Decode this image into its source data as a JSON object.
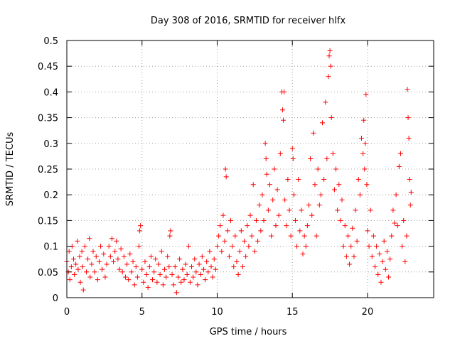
{
  "chart_data": {
    "type": "scatter",
    "title": "Day 308 of 2016, SRMTID for receiver hlfx",
    "xlabel": "GPS time / hours",
    "ylabel": "SRMTID / TECUs",
    "xlim": [
      0,
      24.4
    ],
    "ylim": [
      0,
      0.5
    ],
    "xticks": [
      0,
      5,
      10,
      15,
      20
    ],
    "xtick_labels": [
      "0",
      "5",
      "10",
      "15",
      "20"
    ],
    "yticks": [
      0,
      0.05,
      0.1,
      0.15,
      0.2,
      0.25,
      0.3,
      0.35,
      0.4,
      0.45,
      0.5
    ],
    "ytick_labels": [
      "0",
      "0.05",
      "0.1",
      "0.15",
      "0.2",
      "0.25",
      "0.3",
      "0.35",
      "0.4",
      "0.45",
      "0.5"
    ],
    "grid": true,
    "marker": "+",
    "series": [
      {
        "name": "SRMTID",
        "color": "#ff0000",
        "points": [
          [
            0.0,
            0.07
          ],
          [
            0.1,
            0.05
          ],
          [
            0.15,
            0.09
          ],
          [
            0.2,
            0.035
          ],
          [
            0.3,
            0.06
          ],
          [
            0.35,
            0.1
          ],
          [
            0.45,
            0.075
          ],
          [
            0.5,
            0.045
          ],
          [
            0.6,
            0.065
          ],
          [
            0.7,
            0.11
          ],
          [
            0.75,
            0.055
          ],
          [
            0.85,
            0.08
          ],
          [
            0.9,
            0.03
          ],
          [
            1.0,
            0.09
          ],
          [
            1.05,
            0.06
          ],
          [
            1.1,
            0.015
          ],
          [
            1.2,
            0.1
          ],
          [
            1.3,
            0.05
          ],
          [
            1.4,
            0.075
          ],
          [
            1.5,
            0.115
          ],
          [
            1.55,
            0.04
          ],
          [
            1.65,
            0.065
          ],
          [
            1.75,
            0.09
          ],
          [
            1.85,
            0.05
          ],
          [
            1.95,
            0.08
          ],
          [
            2.05,
            0.035
          ],
          [
            2.15,
            0.07
          ],
          [
            2.25,
            0.1
          ],
          [
            2.35,
            0.055
          ],
          [
            2.45,
            0.085
          ],
          [
            2.55,
            0.04
          ],
          [
            2.65,
            0.065
          ],
          [
            2.8,
            0.1
          ],
          [
            2.9,
            0.08
          ],
          [
            3.0,
            0.115
          ],
          [
            3.1,
            0.07
          ],
          [
            3.2,
            0.09
          ],
          [
            3.3,
            0.11
          ],
          [
            3.4,
            0.075
          ],
          [
            3.5,
            0.055
          ],
          [
            3.6,
            0.095
          ],
          [
            3.7,
            0.05
          ],
          [
            3.8,
            0.08
          ],
          [
            3.9,
            0.04
          ],
          [
            4.0,
            0.065
          ],
          [
            4.1,
            0.035
          ],
          [
            4.2,
            0.085
          ],
          [
            4.3,
            0.05
          ],
          [
            4.4,
            0.07
          ],
          [
            4.5,
            0.025
          ],
          [
            4.6,
            0.06
          ],
          [
            4.7,
            0.04
          ],
          [
            4.8,
            0.1
          ],
          [
            4.85,
            0.13
          ],
          [
            4.9,
            0.14
          ],
          [
            5.0,
            0.055
          ],
          [
            5.1,
            0.03
          ],
          [
            5.2,
            0.07
          ],
          [
            5.3,
            0.045
          ],
          [
            5.4,
            0.02
          ],
          [
            5.5,
            0.06
          ],
          [
            5.6,
            0.08
          ],
          [
            5.7,
            0.035
          ],
          [
            5.8,
            0.05
          ],
          [
            5.9,
            0.075
          ],
          [
            6.0,
            0.03
          ],
          [
            6.1,
            0.065
          ],
          [
            6.2,
            0.045
          ],
          [
            6.3,
            0.09
          ],
          [
            6.4,
            0.025
          ],
          [
            6.5,
            0.055
          ],
          [
            6.6,
            0.04
          ],
          [
            6.7,
            0.08
          ],
          [
            6.8,
            0.06
          ],
          [
            6.85,
            0.12
          ],
          [
            6.9,
            0.13
          ],
          [
            7.0,
            0.045
          ],
          [
            7.1,
            0.025
          ],
          [
            7.2,
            0.06
          ],
          [
            7.3,
            0.01
          ],
          [
            7.4,
            0.04
          ],
          [
            7.5,
            0.075
          ],
          [
            7.6,
            0.03
          ],
          [
            7.7,
            0.055
          ],
          [
            7.8,
            0.035
          ],
          [
            7.9,
            0.065
          ],
          [
            8.0,
            0.045
          ],
          [
            8.1,
            0.1
          ],
          [
            8.2,
            0.03
          ],
          [
            8.3,
            0.06
          ],
          [
            8.4,
            0.04
          ],
          [
            8.5,
            0.075
          ],
          [
            8.6,
            0.05
          ],
          [
            8.7,
            0.025
          ],
          [
            8.8,
            0.065
          ],
          [
            8.9,
            0.045
          ],
          [
            9.0,
            0.08
          ],
          [
            9.1,
            0.055
          ],
          [
            9.2,
            0.035
          ],
          [
            9.3,
            0.07
          ],
          [
            9.4,
            0.05
          ],
          [
            9.5,
            0.09
          ],
          [
            9.6,
            0.06
          ],
          [
            9.7,
            0.04
          ],
          [
            9.8,
            0.075
          ],
          [
            9.9,
            0.055
          ],
          [
            10.0,
            0.1
          ],
          [
            10.1,
            0.12
          ],
          [
            10.2,
            0.14
          ],
          [
            10.3,
            0.09
          ],
          [
            10.4,
            0.16
          ],
          [
            10.5,
            0.11
          ],
          [
            10.55,
            0.25
          ],
          [
            10.6,
            0.235
          ],
          [
            10.7,
            0.13
          ],
          [
            10.8,
            0.08
          ],
          [
            10.9,
            0.15
          ],
          [
            11.0,
            0.1
          ],
          [
            11.1,
            0.06
          ],
          [
            11.2,
            0.12
          ],
          [
            11.3,
            0.07
          ],
          [
            11.4,
            0.045
          ],
          [
            11.5,
            0.09
          ],
          [
            11.6,
            0.13
          ],
          [
            11.7,
            0.06
          ],
          [
            11.8,
            0.11
          ],
          [
            11.9,
            0.08
          ],
          [
            12.0,
            0.14
          ],
          [
            12.1,
            0.1
          ],
          [
            12.2,
            0.16
          ],
          [
            12.3,
            0.12
          ],
          [
            12.4,
            0.22
          ],
          [
            12.5,
            0.09
          ],
          [
            12.6,
            0.15
          ],
          [
            12.7,
            0.11
          ],
          [
            12.8,
            0.18
          ],
          [
            12.9,
            0.13
          ],
          [
            13.0,
            0.2
          ],
          [
            13.1,
            0.15
          ],
          [
            13.2,
            0.3
          ],
          [
            13.25,
            0.27
          ],
          [
            13.3,
            0.24
          ],
          [
            13.4,
            0.17
          ],
          [
            13.5,
            0.22
          ],
          [
            13.6,
            0.12
          ],
          [
            13.7,
            0.19
          ],
          [
            13.8,
            0.25
          ],
          [
            13.9,
            0.14
          ],
          [
            14.0,
            0.21
          ],
          [
            14.1,
            0.16
          ],
          [
            14.2,
            0.28
          ],
          [
            14.3,
            0.4
          ],
          [
            14.35,
            0.365
          ],
          [
            14.4,
            0.345
          ],
          [
            14.45,
            0.4
          ],
          [
            14.5,
            0.19
          ],
          [
            14.6,
            0.14
          ],
          [
            14.7,
            0.23
          ],
          [
            14.8,
            0.17
          ],
          [
            14.9,
            0.12
          ],
          [
            15.0,
            0.29
          ],
          [
            15.05,
            0.27
          ],
          [
            15.1,
            0.2
          ],
          [
            15.2,
            0.15
          ],
          [
            15.3,
            0.1
          ],
          [
            15.4,
            0.23
          ],
          [
            15.5,
            0.13
          ],
          [
            15.6,
            0.17
          ],
          [
            15.7,
            0.085
          ],
          [
            15.8,
            0.12
          ],
          [
            15.9,
            0.1
          ],
          [
            16.0,
            0.14
          ],
          [
            16.1,
            0.18
          ],
          [
            16.2,
            0.27
          ],
          [
            16.3,
            0.16
          ],
          [
            16.4,
            0.32
          ],
          [
            16.5,
            0.22
          ],
          [
            16.6,
            0.12
          ],
          [
            16.7,
            0.25
          ],
          [
            16.8,
            0.18
          ],
          [
            16.9,
            0.2
          ],
          [
            17.0,
            0.34
          ],
          [
            17.1,
            0.23
          ],
          [
            17.2,
            0.38
          ],
          [
            17.3,
            0.27
          ],
          [
            17.4,
            0.43
          ],
          [
            17.45,
            0.47
          ],
          [
            17.5,
            0.48
          ],
          [
            17.55,
            0.45
          ],
          [
            17.6,
            0.35
          ],
          [
            17.7,
            0.28
          ],
          [
            17.8,
            0.21
          ],
          [
            17.9,
            0.25
          ],
          [
            18.0,
            0.17
          ],
          [
            18.1,
            0.22
          ],
          [
            18.2,
            0.15
          ],
          [
            18.3,
            0.19
          ],
          [
            18.4,
            0.1
          ],
          [
            18.5,
            0.14
          ],
          [
            18.6,
            0.08
          ],
          [
            18.7,
            0.12
          ],
          [
            18.8,
            0.065
          ],
          [
            18.9,
            0.1
          ],
          [
            19.0,
            0.135
          ],
          [
            19.1,
            0.08
          ],
          [
            19.2,
            0.17
          ],
          [
            19.3,
            0.11
          ],
          [
            19.4,
            0.23
          ],
          [
            19.5,
            0.2
          ],
          [
            19.6,
            0.31
          ],
          [
            19.7,
            0.28
          ],
          [
            19.75,
            0.345
          ],
          [
            19.8,
            0.25
          ],
          [
            19.85,
            0.3
          ],
          [
            19.9,
            0.395
          ],
          [
            19.95,
            0.22
          ],
          [
            20.0,
            0.13
          ],
          [
            20.1,
            0.1
          ],
          [
            20.2,
            0.17
          ],
          [
            20.3,
            0.08
          ],
          [
            20.4,
            0.12
          ],
          [
            20.5,
            0.06
          ],
          [
            20.6,
            0.1
          ],
          [
            20.7,
            0.045
          ],
          [
            20.8,
            0.085
          ],
          [
            20.9,
            0.03
          ],
          [
            21.0,
            0.07
          ],
          [
            21.1,
            0.11
          ],
          [
            21.2,
            0.055
          ],
          [
            21.3,
            0.09
          ],
          [
            21.4,
            0.04
          ],
          [
            21.5,
            0.075
          ],
          [
            21.6,
            0.12
          ],
          [
            21.7,
            0.17
          ],
          [
            21.8,
            0.145
          ],
          [
            21.9,
            0.2
          ],
          [
            22.0,
            0.14
          ],
          [
            22.1,
            0.255
          ],
          [
            22.2,
            0.28
          ],
          [
            22.3,
            0.1
          ],
          [
            22.4,
            0.15
          ],
          [
            22.5,
            0.07
          ],
          [
            22.6,
            0.12
          ],
          [
            22.65,
            0.405
          ],
          [
            22.7,
            0.35
          ],
          [
            22.75,
            0.31
          ],
          [
            22.8,
            0.23
          ],
          [
            22.85,
            0.18
          ],
          [
            22.9,
            0.205
          ]
        ]
      }
    ]
  }
}
